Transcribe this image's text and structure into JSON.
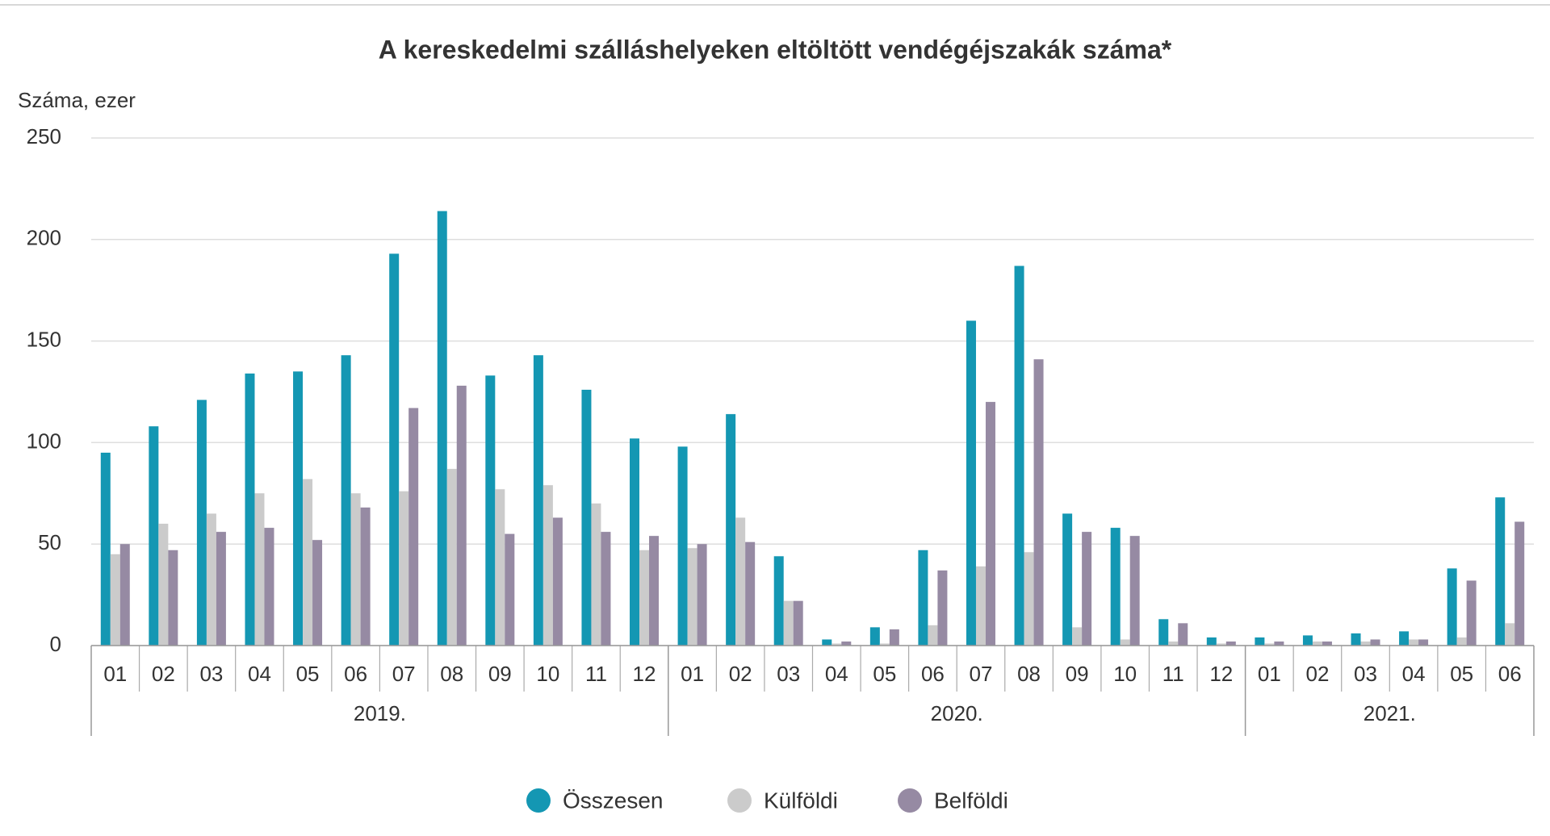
{
  "chart_data": {
    "type": "bar",
    "title": "A kereskedelmi szálláshelyeken eltöltött vendégéjszakák száma*",
    "y_label": "Száma, ezer",
    "groups": [
      {
        "label": "2019.",
        "categories": [
          "01",
          "02",
          "03",
          "04",
          "05",
          "06",
          "07",
          "08",
          "09",
          "10",
          "11",
          "12"
        ]
      },
      {
        "label": "2020.",
        "categories": [
          "01",
          "02",
          "03",
          "04",
          "05",
          "06",
          "07",
          "08",
          "09",
          "10",
          "11",
          "12"
        ]
      },
      {
        "label": "2021.",
        "categories": [
          "01",
          "02",
          "03",
          "04",
          "05",
          "06"
        ]
      }
    ],
    "series": [
      {
        "name": "Összesen",
        "color": "#1497b3",
        "values": [
          95,
          108,
          121,
          134,
          135,
          143,
          193,
          214,
          133,
          143,
          126,
          102,
          98,
          114,
          44,
          3,
          9,
          47,
          160,
          187,
          65,
          58,
          13,
          4,
          4,
          5,
          6,
          7,
          38,
          73
        ]
      },
      {
        "name": "Külföldi",
        "color": "#cbcbcb",
        "values": [
          45,
          60,
          65,
          75,
          82,
          75,
          76,
          87,
          77,
          79,
          70,
          47,
          48,
          63,
          22,
          1,
          1,
          10,
          39,
          46,
          9,
          3,
          2,
          1,
          1,
          2,
          2,
          3,
          4,
          11
        ]
      },
      {
        "name": "Belföldi",
        "color": "#968aa3",
        "values": [
          50,
          47,
          56,
          58,
          52,
          68,
          117,
          128,
          55,
          63,
          56,
          54,
          50,
          51,
          22,
          2,
          8,
          37,
          120,
          141,
          56,
          54,
          11,
          2,
          2,
          2,
          3,
          3,
          32,
          61
        ]
      }
    ],
    "ylim": [
      0,
      250
    ],
    "yticks": [
      0,
      50,
      100,
      150,
      200,
      250
    ],
    "grid": true,
    "legend": "bottom"
  }
}
